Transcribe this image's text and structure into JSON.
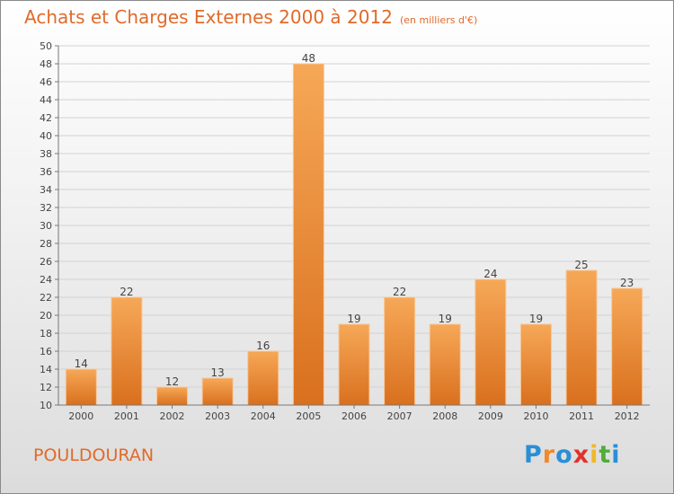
{
  "header": {
    "title": "Achats et Charges Externes 2000 à 2012",
    "units": "(en milliers d'€)"
  },
  "footer": {
    "commune": "POULDOURAN",
    "logo": {
      "text": "Proxiti",
      "colors": [
        "#2a8fd6",
        "#f0892a",
        "#2a8fd6",
        "#e0332b",
        "#f0b82a",
        "#4fae3a",
        "#2a8fd6"
      ]
    }
  },
  "colors": {
    "accent": "#e06a2a",
    "bar_light": "#f6a857",
    "bar_dark": "#d9701e",
    "grid": "#d2d2d2"
  },
  "chart_data": {
    "type": "bar",
    "title": "Achats et Charges Externes 2000 à 2012",
    "xlabel": "",
    "ylabel": "",
    "categories": [
      "2000",
      "2001",
      "2002",
      "2003",
      "2004",
      "2005",
      "2006",
      "2007",
      "2008",
      "2009",
      "2010",
      "2011",
      "2012"
    ],
    "values": [
      14,
      22,
      12,
      13,
      16,
      48,
      19,
      22,
      19,
      24,
      19,
      25,
      23
    ],
    "ylim": [
      10,
      50
    ],
    "ytick_step": 2,
    "grid": true,
    "legend": "none"
  }
}
